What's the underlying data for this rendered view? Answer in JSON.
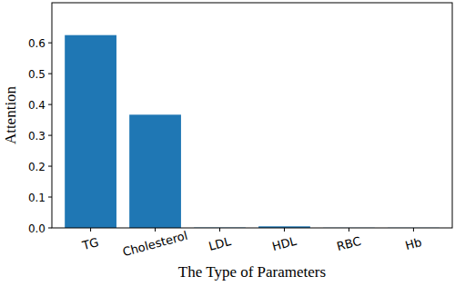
{
  "chart_data": {
    "type": "bar",
    "x_label": "The Type of Parameters",
    "y_label": "Attention",
    "categories": [
      "TG",
      "Cholesterol",
      "LDL",
      "HDL",
      "RBC",
      "Hb"
    ],
    "values": [
      0.625,
      0.367,
      0.001,
      0.005,
      0.0005,
      0.0005
    ],
    "color": "#1f77b4",
    "ylim": [
      0,
      0.73
    ],
    "yticks": [
      {
        "value": 0,
        "label": "0.0"
      },
      0.1,
      0.2,
      0.3,
      0.4,
      0.5,
      0.6
    ],
    "grid": false
  }
}
